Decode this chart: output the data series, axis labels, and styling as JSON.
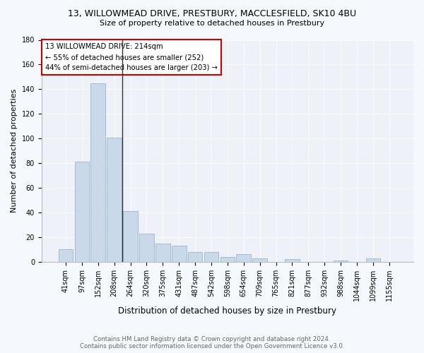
{
  "title1": "13, WILLOWMEAD DRIVE, PRESTBURY, MACCLESFIELD, SK10 4BU",
  "title2": "Size of property relative to detached houses in Prestbury",
  "xlabel": "Distribution of detached houses by size in Prestbury",
  "ylabel": "Number of detached properties",
  "categories": [
    "41sqm",
    "97sqm",
    "152sqm",
    "208sqm",
    "264sqm",
    "320sqm",
    "375sqm",
    "431sqm",
    "487sqm",
    "542sqm",
    "598sqm",
    "654sqm",
    "709sqm",
    "765sqm",
    "821sqm",
    "877sqm",
    "932sqm",
    "988sqm",
    "1044sqm",
    "1099sqm",
    "1155sqm"
  ],
  "values": [
    10,
    81,
    145,
    101,
    41,
    23,
    15,
    13,
    8,
    8,
    4,
    6,
    3,
    0,
    2,
    0,
    0,
    1,
    0,
    3,
    0
  ],
  "bar_color": "#c9d9ea",
  "bar_edge_color": "#9ab4cc",
  "vline_x_index": 3.5,
  "vline_color": "#333333",
  "annotation_text": "13 WILLOWMEAD DRIVE: 214sqm\n← 55% of detached houses are smaller (252)\n44% of semi-detached houses are larger (203) →",
  "annotation_box_color": "#ffffff",
  "annotation_box_edge": "#cc0000",
  "footer1": "Contains HM Land Registry data © Crown copyright and database right 2024.",
  "footer2": "Contains public sector information licensed under the Open Government Licence v3.0.",
  "bg_color": "#f5f8fc",
  "plot_bg_color": "#eef2f8",
  "ylim": [
    0,
    180
  ],
  "yticks": [
    0,
    20,
    40,
    60,
    80,
    100,
    120,
    140,
    160,
    180
  ],
  "title1_fontsize": 9.0,
  "title2_fontsize": 8.0,
  "ylabel_fontsize": 8.0,
  "xlabel_fontsize": 8.5,
  "tick_fontsize": 7.0,
  "annotation_fontsize": 7.2,
  "footer_fontsize": 6.2,
  "footer_color": "#666666"
}
